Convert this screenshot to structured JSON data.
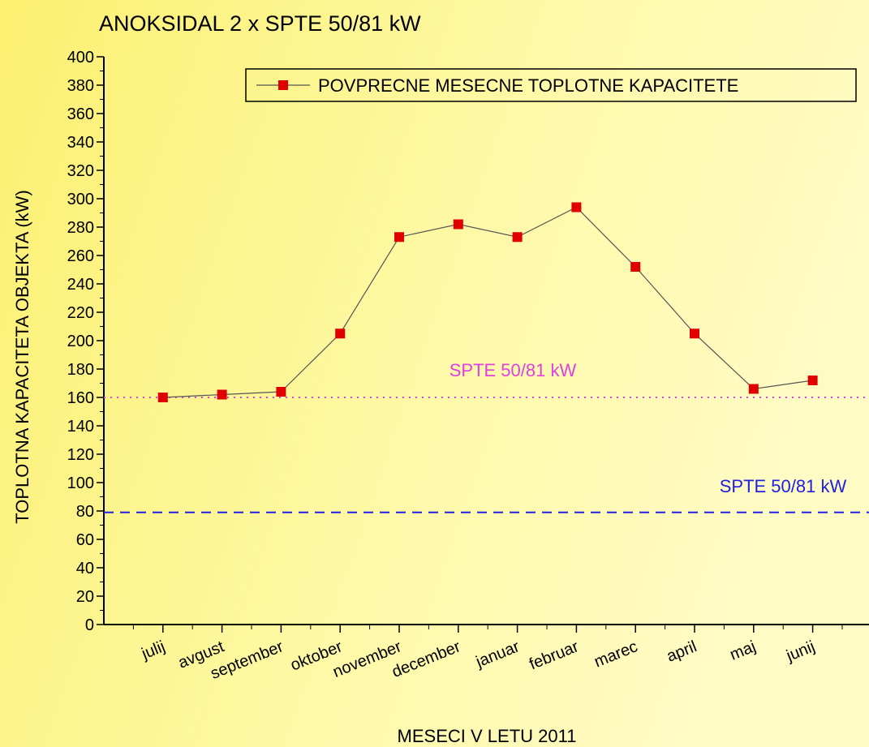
{
  "chart_data": {
    "type": "line",
    "title": "ANOKSIDAL 2 x SPTE 50/81 kW",
    "xlabel": "MESECI V LETU 2011",
    "ylabel": "TOPLOTNA KAPACITETA OBJEKTA (kW)",
    "categories": [
      "julij",
      "avgust",
      "september",
      "oktober",
      "november",
      "december",
      "januar",
      "februar",
      "marec",
      "april",
      "maj",
      "junij"
    ],
    "series": [
      {
        "name": "POVPRECNE MESECNE TOPLOTNE KAPACITETE",
        "color": "#e00000",
        "values": [
          160,
          162,
          164,
          205,
          273,
          282,
          273,
          294,
          252,
          205,
          166,
          172
        ]
      }
    ],
    "ylim": [
      0,
      400
    ],
    "yticks": [
      0,
      20,
      40,
      60,
      80,
      100,
      120,
      140,
      160,
      180,
      200,
      220,
      240,
      260,
      280,
      300,
      320,
      340,
      360,
      380,
      400
    ],
    "reference_lines": [
      {
        "value": 160,
        "label": "SPTE 50/81 kW",
        "color": "#e040e0",
        "style": "dotted"
      },
      {
        "value": 79,
        "label": "SPTE 50/81 kW",
        "color": "#2020e0",
        "style": "dashed"
      }
    ],
    "legend": "upper right"
  }
}
